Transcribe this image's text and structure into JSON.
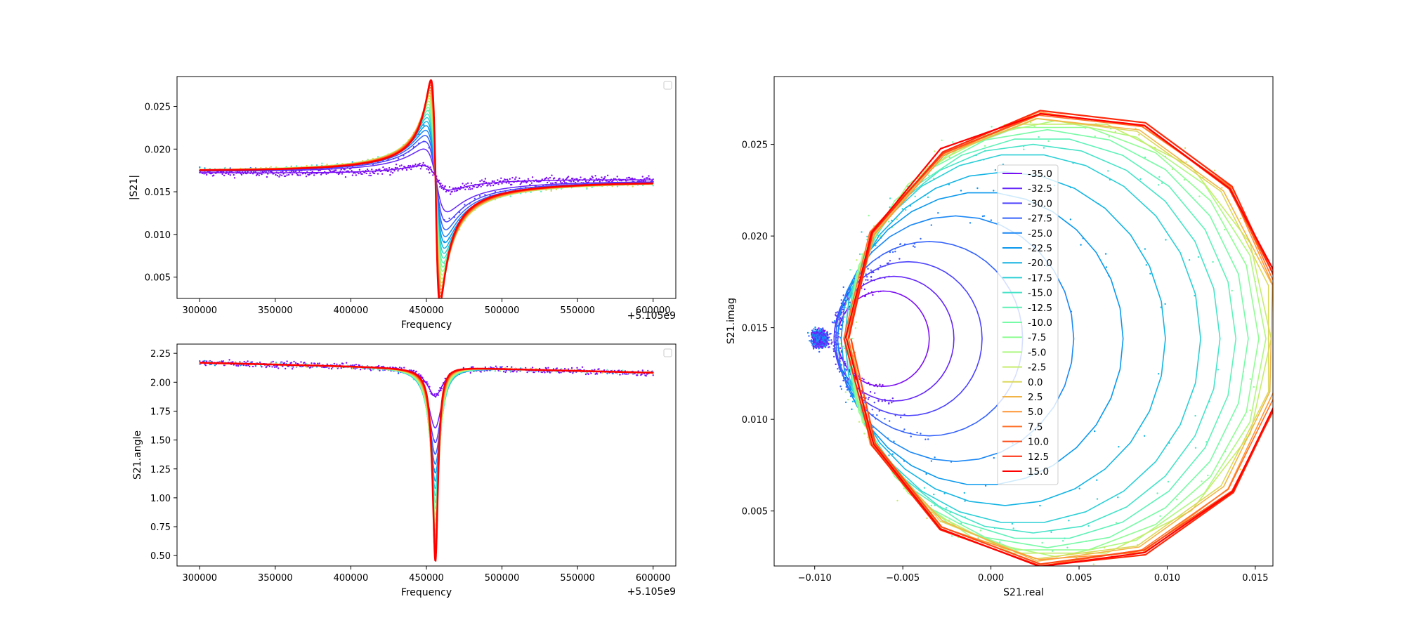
{
  "figure": {
    "background": "#ffffff"
  },
  "chart_data": [
    {
      "type": "scatter",
      "panel": "magnitude",
      "xlabel": "Frequency",
      "ylabel": "|S21|",
      "offset_label": "+5.105e9",
      "xlim": [
        285000,
        615000
      ],
      "ylim": [
        0.0025,
        0.0285
      ],
      "xticks": [
        300000,
        350000,
        400000,
        450000,
        500000,
        550000,
        600000
      ],
      "xtick_labels": [
        "300000",
        "350000",
        "400000",
        "450000",
        "500000",
        "550000",
        "600000"
      ],
      "yticks": [
        0.005,
        0.01,
        0.015,
        0.02,
        0.025
      ],
      "ytick_labels": [
        "0.005",
        "0.010",
        "0.015",
        "0.020",
        "0.025"
      ],
      "legend": "top-right (empty)",
      "resonance_frequency": 456000,
      "baseline": {
        "start": 0.0171,
        "end": 0.0166
      },
      "dip_min": 0.0037,
      "peak_max": 0.0272,
      "series_values": [
        -35.0,
        -32.5,
        -30.0,
        -27.5,
        -25.0,
        -22.5,
        -20.0,
        -17.5,
        -15.0,
        -12.5,
        -10.0,
        -7.5,
        -5.0,
        -2.5,
        0.0,
        2.5,
        5.0,
        7.5,
        10.0,
        12.5,
        15.0
      ]
    },
    {
      "type": "scatter",
      "panel": "phase",
      "xlabel": "Frequency",
      "ylabel": "S21.angle",
      "offset_label": "+5.105e9",
      "xlim": [
        285000,
        615000
      ],
      "ylim": [
        0.41,
        2.33
      ],
      "xticks": [
        300000,
        350000,
        400000,
        450000,
        500000,
        550000,
        600000
      ],
      "xtick_labels": [
        "300000",
        "350000",
        "400000",
        "450000",
        "500000",
        "550000",
        "600000"
      ],
      "yticks": [
        0.5,
        0.75,
        1.0,
        1.25,
        1.5,
        1.75,
        2.0,
        2.25
      ],
      "ytick_labels": [
        "0.50",
        "0.75",
        "1.00",
        "1.25",
        "1.50",
        "1.75",
        "2.00",
        "2.25"
      ],
      "legend": "top-right (empty)",
      "resonance_frequency": 456000,
      "baseline": {
        "start": 2.17,
        "end": 2.08
      },
      "dip_min": 0.49,
      "peak_max": 2.25
    },
    {
      "type": "line",
      "panel": "complex plane",
      "xlabel": "S21.real",
      "ylabel": "S21.imag",
      "xlim": [
        -0.0123,
        0.016
      ],
      "ylim": [
        0.002,
        0.0287
      ],
      "xticks": [
        -0.01,
        -0.005,
        0.0,
        0.005,
        0.01,
        0.015
      ],
      "xtick_labels": [
        "−0.010",
        "−0.005",
        "0.000",
        "0.005",
        "0.010",
        "0.015"
      ],
      "yticks": [
        0.005,
        0.01,
        0.015,
        0.02,
        0.025
      ],
      "ytick_labels": [
        "0.005",
        "0.010",
        "0.015",
        "0.020",
        "0.025"
      ],
      "legend_position": "center",
      "off_resonance_point": {
        "x": -0.0097,
        "y": 0.0144
      },
      "series": [
        {
          "name": "-35.0",
          "color": "#7b0ff4",
          "circle": {
            "cx": -0.0061,
            "cy": 0.0144,
            "r": 0.0026
          }
        },
        {
          "name": "-32.5",
          "color": "#6527fa",
          "circle": {
            "cx": -0.0055,
            "cy": 0.0144,
            "r": 0.0034
          }
        },
        {
          "name": "-30.0",
          "color": "#4c42fe",
          "circle": {
            "cx": -0.0047,
            "cy": 0.0144,
            "r": 0.0042
          }
        },
        {
          "name": "-27.5",
          "color": "#3462fc",
          "circle": {
            "cx": -0.0035,
            "cy": 0.0144,
            "r": 0.0053
          }
        },
        {
          "name": "-25.0",
          "color": "#1a87f6",
          "circle": {
            "cx": -0.002,
            "cy": 0.0144,
            "r": 0.0067
          }
        },
        {
          "name": "-22.5",
          "color": "#0a98ee",
          "circle": {
            "cx": -0.0005,
            "cy": 0.0144,
            "r": 0.008
          }
        },
        {
          "name": "-20.0",
          "color": "#14b4e3",
          "circle": {
            "cx": 0.0008,
            "cy": 0.0144,
            "r": 0.0091
          }
        },
        {
          "name": "-17.5",
          "color": "#2ccfd6",
          "circle": {
            "cx": 0.0018,
            "cy": 0.0144,
            "r": 0.0101
          }
        },
        {
          "name": "-15.0",
          "color": "#46e3c8",
          "circle": {
            "cx": 0.0024,
            "cy": 0.0144,
            "r": 0.0106
          }
        },
        {
          "name": "-12.5",
          "color": "#5ef2b8",
          "circle": {
            "cx": 0.0029,
            "cy": 0.0144,
            "r": 0.011
          }
        },
        {
          "name": "-10.0",
          "color": "#78fba6",
          "circle": {
            "cx": 0.0032,
            "cy": 0.0144,
            "r": 0.0114
          }
        },
        {
          "name": "-7.5",
          "color": "#90fd94",
          "circle": {
            "cx": 0.0035,
            "cy": 0.0144,
            "r": 0.0117
          }
        },
        {
          "name": "-5.0",
          "color": "#aef880",
          "circle": {
            "cx": 0.0037,
            "cy": 0.0144,
            "r": 0.0119
          }
        },
        {
          "name": "-2.5",
          "color": "#c6ed6c",
          "circle": {
            "cx": 0.0039,
            "cy": 0.0144,
            "r": 0.012
          }
        },
        {
          "name": "0.0",
          "color": "#dcd85a",
          "circle": {
            "cx": 0.004,
            "cy": 0.0144,
            "r": 0.0121
          }
        },
        {
          "name": "2.5",
          "color": "#f2b447",
          "circle": {
            "cx": 0.0041,
            "cy": 0.0144,
            "r": 0.0122
          }
        },
        {
          "name": "5.0",
          "color": "#ff9636",
          "circle": {
            "cx": 0.0042,
            "cy": 0.0144,
            "r": 0.0123
          }
        },
        {
          "name": "7.5",
          "color": "#ff6e25",
          "circle": {
            "cx": 0.0042,
            "cy": 0.0144,
            "r": 0.0124
          }
        },
        {
          "name": "10.0",
          "color": "#ff4c17",
          "circle": {
            "cx": 0.0043,
            "cy": 0.0144,
            "r": 0.0124
          }
        },
        {
          "name": "12.5",
          "color": "#ff2a0b",
          "circle": {
            "cx": 0.0043,
            "cy": 0.0144,
            "r": 0.0125
          }
        },
        {
          "name": "15.0",
          "color": "#ff0000",
          "circle": {
            "cx": 0.0043,
            "cy": 0.0144,
            "r": 0.0125
          }
        }
      ]
    }
  ]
}
